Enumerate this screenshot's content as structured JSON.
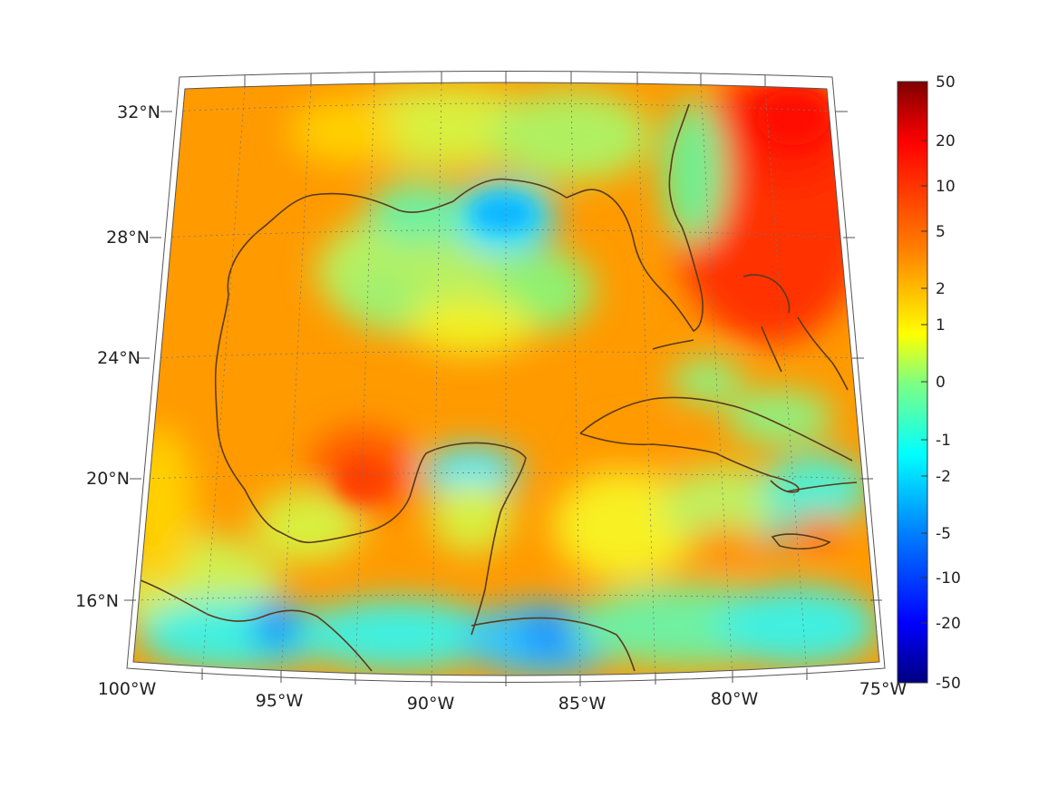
{
  "map": {
    "lat_labels": [
      "32°N",
      "28°N",
      "24°N",
      "20°N",
      "16°N"
    ],
    "lon_labels": [
      "100°W",
      "95°W",
      "90°W",
      "85°W",
      "80°W",
      "75°W"
    ],
    "extent": {
      "lon_min": -100,
      "lon_max": -75,
      "lat_min": 14,
      "lat_max": 33
    },
    "projection": "conic",
    "coastline_color": "#5a3a1e",
    "gridline_style": "dotted"
  },
  "colorbar": {
    "colormap": "jet",
    "ticks": [
      "50",
      "20",
      "10",
      "5",
      "2",
      "1",
      "0",
      "-1",
      "-2",
      "-5",
      "-10",
      "-20",
      "-50"
    ],
    "colors": [
      "#800000",
      "#ff0000",
      "#ff8000",
      "#ffff00",
      "#80ff80",
      "#00ffff",
      "#0080ff",
      "#0000ff",
      "#000080"
    ]
  }
}
